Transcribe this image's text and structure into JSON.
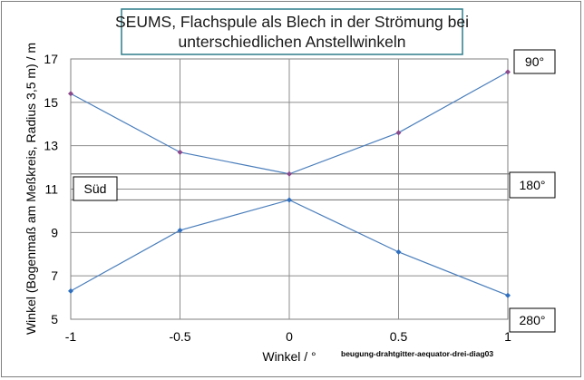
{
  "chart_data": {
    "type": "line",
    "title": "SEUMS, Flachspule als Blech in der Strömung bei unterschiedlichen Anstellwinkeln",
    "title_lines": [
      "SEUMS, Flachspule als Blech in der Strömung bei",
      "unterschiedlichen Anstellwinkeln"
    ],
    "xlabel": "Winkel / °",
    "ylabel": "Winkel (Bogenmaß am Meßkreis, Radius 3,5 m) / m",
    "xlim": [
      -1,
      1
    ],
    "ylim": [
      5,
      17
    ],
    "x_ticks": [
      -1,
      -0.5,
      0,
      0.5,
      1
    ],
    "x_tick_labels": [
      "-1",
      "-0.5",
      "0",
      "0.5",
      "1"
    ],
    "y_ticks": [
      5,
      7,
      9,
      11,
      13,
      15,
      17
    ],
    "grid": true,
    "line_color": "#4a7ebb",
    "series": [
      {
        "x": [
          -1,
          -0.5,
          0,
          0.5,
          1
        ],
        "values": [
          15.4,
          12.7,
          11.7,
          13.6,
          16.4
        ],
        "marker_color": "#8b4a8b"
      },
      {
        "x": [
          -1,
          -0.5,
          0,
          0.5,
          1
        ],
        "values": [
          6.3,
          9.1,
          10.5,
          8.1,
          6.1
        ],
        "marker_color": "#2f6fbf"
      }
    ],
    "reference_lines": [
      11.7,
      10.5
    ],
    "annotations": {
      "label_90": "90°",
      "label_180": "180°",
      "label_280": "280°",
      "label_sued": "Süd"
    },
    "credit": "beugung-drahtgitter-aequator-drei-diag03"
  }
}
